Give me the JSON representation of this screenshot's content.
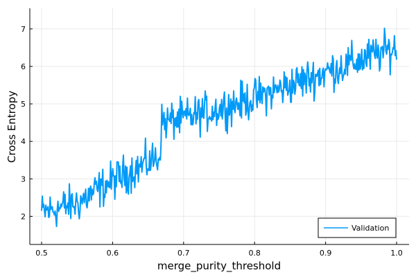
{
  "chart_data": {
    "type": "line",
    "title": "",
    "xlabel": "merge_purity_threshold",
    "ylabel": "Cross Entropy",
    "xlim": [
      0.5,
      1.0
    ],
    "ylim": [
      1.25,
      7.55
    ],
    "x_ticks": [
      0.5,
      0.6,
      0.7,
      0.8,
      0.9,
      1.0
    ],
    "x_tick_labels": [
      "0.5",
      "0.6",
      "0.7",
      "0.8",
      "0.9",
      "1.0"
    ],
    "y_ticks": [
      2,
      3,
      4,
      5,
      6,
      7
    ],
    "y_tick_labels": [
      "2",
      "3",
      "4",
      "5",
      "6",
      "7"
    ],
    "grid": true,
    "legend_position": "bottom-right",
    "series_color": "#009af9",
    "series": [
      {
        "name": "Validation",
        "x_range": [
          0.5,
          1.0
        ],
        "n_points": 500,
        "trend": [
          {
            "x": 0.5,
            "y": 2.1
          },
          {
            "x": 0.55,
            "y": 2.35
          },
          {
            "x": 0.6,
            "y": 2.95
          },
          {
            "x": 0.667,
            "y": 3.6
          },
          {
            "x": 0.668,
            "y": 4.5
          },
          {
            "x": 0.7,
            "y": 4.6
          },
          {
            "x": 0.8,
            "y": 5.15
          },
          {
            "x": 0.9,
            "y": 5.85
          },
          {
            "x": 1.0,
            "y": 6.5
          }
        ],
        "noise_amplitude": 0.32
      }
    ]
  }
}
